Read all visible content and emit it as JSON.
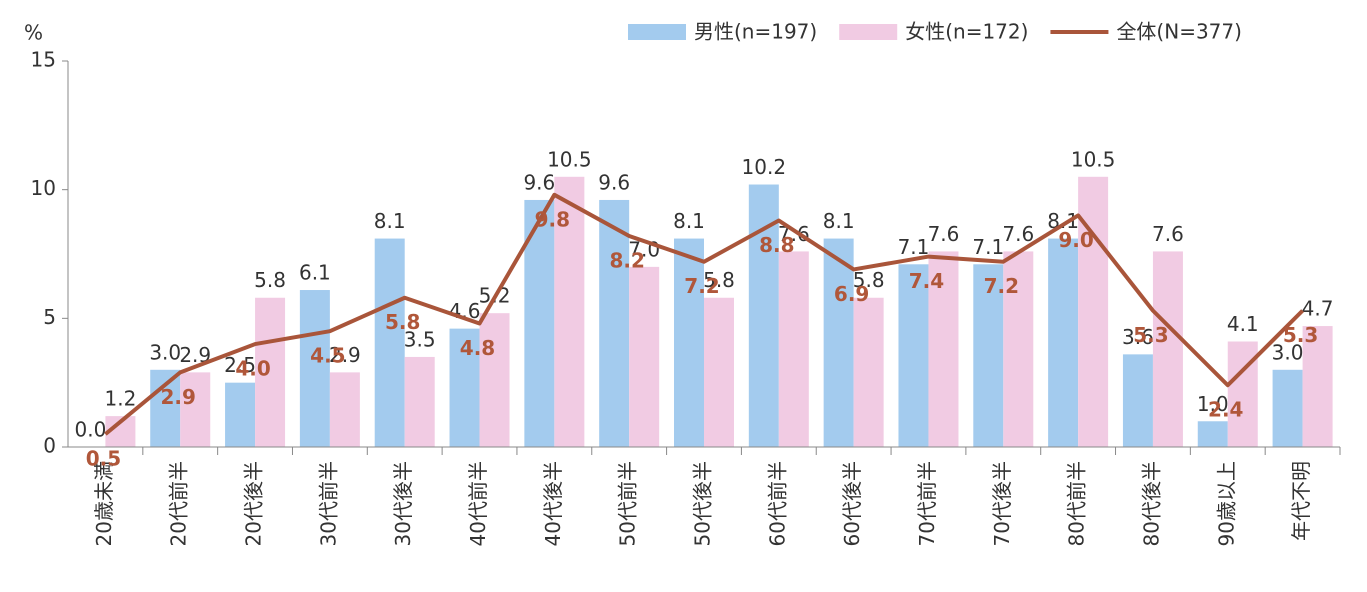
{
  "chart_data": {
    "type": "bar",
    "y_axis_label": "%",
    "categories": [
      "20歳未満",
      "20代前半",
      "20代後半",
      "30代前半",
      "30代後半",
      "40代前半",
      "40代後半",
      "50代前半",
      "50代後半",
      "60代前半",
      "60代後半",
      "70代前半",
      "70代後半",
      "80代前半",
      "80代後半",
      "90歳以上",
      "年代不明"
    ],
    "series": [
      {
        "name": "男性(n=197)",
        "color": "#a3cbee",
        "values": [
          0.0,
          3.0,
          2.5,
          6.1,
          8.1,
          4.6,
          9.6,
          9.6,
          8.1,
          10.2,
          8.1,
          7.1,
          7.1,
          8.1,
          3.6,
          1.0,
          3.0
        ],
        "value_labels": [
          "0.0",
          "3.0",
          "2.5",
          "6.1",
          "8.1",
          "4.6",
          "9.6",
          "9.6",
          "8.1",
          "10.2",
          "8.1",
          "7.1",
          "7.1",
          "8.1",
          "3.6",
          "1.0",
          "3.0"
        ]
      },
      {
        "name": "女性(n=172)",
        "color": "#f1cbe3",
        "values": [
          1.2,
          2.9,
          5.8,
          2.9,
          3.5,
          5.2,
          10.5,
          7.0,
          5.8,
          7.6,
          5.8,
          7.6,
          7.6,
          10.5,
          7.6,
          4.1,
          4.7
        ],
        "value_labels": [
          "1.2",
          "2.9",
          "5.8",
          "2.9",
          "3.5",
          "5.2",
          "10.5",
          "7.0",
          "5.8",
          "7.6",
          "5.8",
          "7.6",
          "7.6",
          "10.5",
          "7.6",
          "4.1",
          "4.7"
        ]
      },
      {
        "name": "全体(N=377)",
        "color": "#a9553a",
        "type": "line",
        "values": [
          0.5,
          2.9,
          4.0,
          4.5,
          5.8,
          4.8,
          9.8,
          8.2,
          7.2,
          8.8,
          6.9,
          7.4,
          7.2,
          9.0,
          5.3,
          2.4,
          5.3
        ],
        "value_labels": [
          "0.5",
          "2.9",
          "4.0",
          "4.5",
          "5.8",
          "4.8",
          "9.8",
          "8.2",
          "7.2",
          "8.8",
          "6.9",
          "7.4",
          "7.2",
          "9.0",
          "5.3",
          "2.4",
          "5.3"
        ]
      }
    ],
    "ylim": [
      0,
      15
    ],
    "yticks": [
      0,
      5,
      10,
      15
    ],
    "legend": "top-right"
  }
}
